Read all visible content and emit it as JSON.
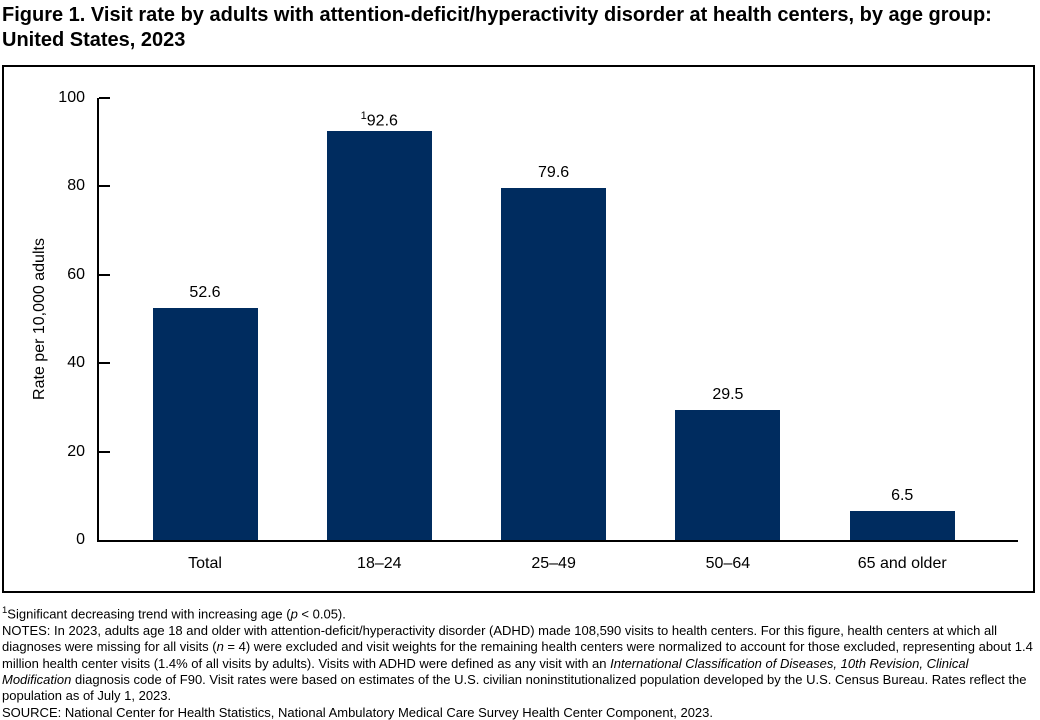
{
  "title": "Figure 1. Visit rate by adults with attention-deficit/hyperactivity disorder at health centers, by age group: United States, 2023",
  "chart_data": {
    "type": "bar",
    "categories": [
      "Total",
      "18–24",
      "25–49",
      "50–64",
      "65 and older"
    ],
    "values": [
      52.6,
      92.6,
      79.6,
      29.5,
      6.5
    ],
    "data_labels": [
      {
        "sup": "",
        "text": "52.6"
      },
      {
        "sup": "1",
        "text": "92.6"
      },
      {
        "sup": "",
        "text": "79.6"
      },
      {
        "sup": "",
        "text": "29.5"
      },
      {
        "sup": "",
        "text": "6.5"
      }
    ],
    "title": "",
    "xlabel": "",
    "ylabel": "Rate per 10,000 adults",
    "ylim": [
      0,
      100
    ],
    "yticks": [
      0,
      20,
      40,
      60,
      80,
      100
    ],
    "grid": false,
    "legend": "none",
    "bar_color": "#002c5f",
    "axis_color": "#000000"
  },
  "footnotes": {
    "trend_segments": [
      {
        "t": "1",
        "sup": true
      },
      {
        "t": "Significant decreasing trend with increasing age ("
      },
      {
        "t": "p",
        "i": true
      },
      {
        "t": " < 0.05)."
      }
    ],
    "notes_segments": [
      {
        "t": "NOTES: In 2023, adults age 18 and older with attention-deficit/hyperactivity disorder (ADHD) made 108,590 visits to health centers. For this figure, health centers at which all diagnoses were missing for all visits ("
      },
      {
        "t": "n",
        "i": true
      },
      {
        "t": " = 4) were excluded and visit weights for the remaining health centers were normalized to account for those excluded, representing about 1.4 million health center visits (1.4% of all visits by adults). Visits with ADHD were defined as any visit with an "
      },
      {
        "t": "International Classification of Diseases, 10th Revision, Clinical Modification",
        "i": true
      },
      {
        "t": " diagnosis code of F90. Visit rates were based on estimates of the U.S. civilian noninstitutionalized population developed by the U.S. Census Bureau. Rates reflect the population as of July 1, 2023."
      }
    ],
    "source": "SOURCE: National Center for Health Statistics, National Ambulatory Medical Care Survey Health Center Component, 2023."
  }
}
